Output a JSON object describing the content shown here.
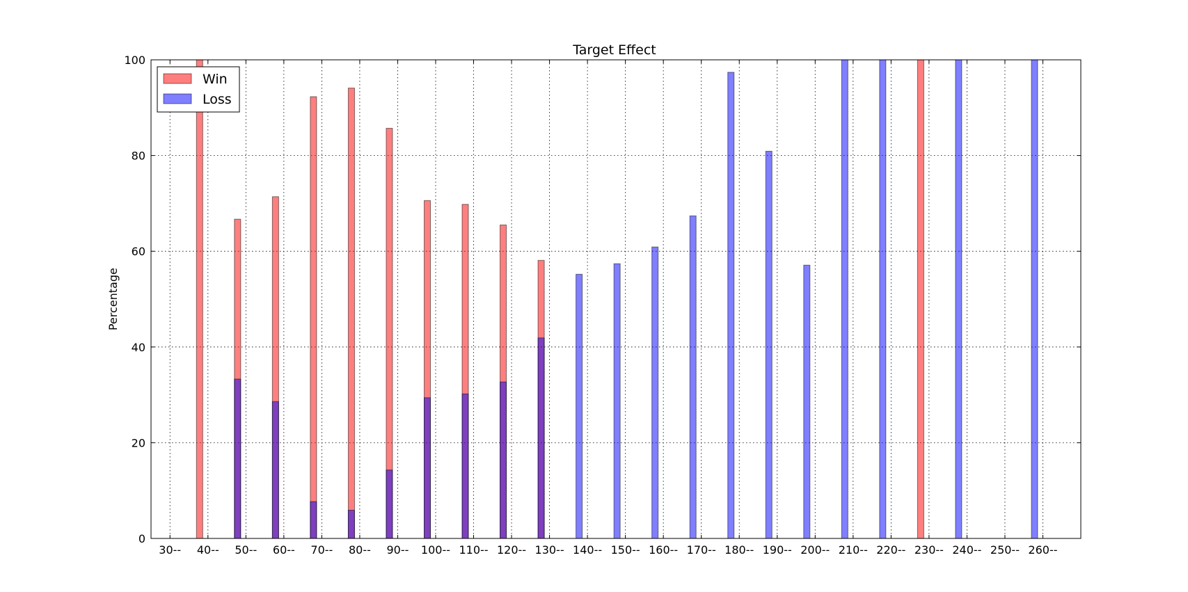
{
  "chart_data": {
    "type": "bar",
    "title": "Target Effect",
    "xlabel": "",
    "ylabel": "Percentage",
    "ylim": [
      0,
      100
    ],
    "yticks": [
      0,
      20,
      40,
      60,
      80,
      100
    ],
    "grid": true,
    "legend_position": "top-left",
    "categories": [
      "30--",
      "40--",
      "50--",
      "60--",
      "70--",
      "80--",
      "90--",
      "100--",
      "110--",
      "120--",
      "130--",
      "140--",
      "150--",
      "160--",
      "170--",
      "180--",
      "190--",
      "200--",
      "210--",
      "220--",
      "230--",
      "240--",
      "250--",
      "260--"
    ],
    "series": [
      {
        "name": "Win",
        "color": "#ff0000",
        "values": [
          0,
          100,
          66.7,
          71.4,
          92.3,
          94.1,
          85.7,
          70.6,
          69.8,
          65.5,
          58.1,
          0,
          0,
          0,
          0,
          0,
          0,
          0,
          0,
          0,
          100,
          0,
          0,
          0
        ]
      },
      {
        "name": "Loss",
        "color": "#0000ff",
        "values": [
          0,
          0,
          33.3,
          28.6,
          7.7,
          5.9,
          14.3,
          29.4,
          30.2,
          32.7,
          41.9,
          55.2,
          57.4,
          60.9,
          67.4,
          97.4,
          80.9,
          57.1,
          100,
          100,
          0,
          100,
          0,
          100
        ]
      }
    ]
  }
}
